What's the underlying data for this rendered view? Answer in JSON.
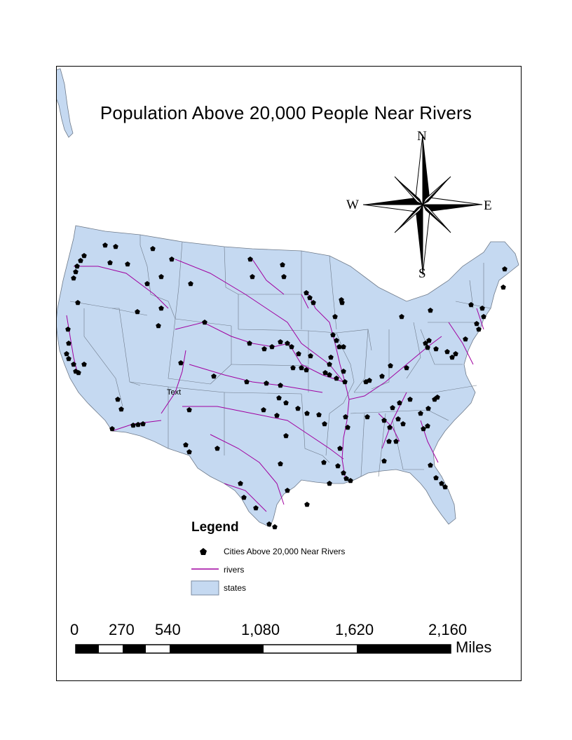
{
  "map": {
    "title": "Population Above 20,000 People Near Rivers",
    "annotation_text": "Text",
    "compass": {
      "north": "N",
      "south": "S",
      "east": "E",
      "west": "W"
    },
    "legend": {
      "title": "Legend",
      "items": [
        {
          "label": "Cities Above 20,000 Near Rivers",
          "symbol": "pentagon-marker-icon",
          "color": "#000000"
        },
        {
          "label": "rivers",
          "symbol": "line",
          "color": "#a000a0"
        },
        {
          "label": "states",
          "symbol": "fill",
          "color": "#c5d9f1"
        }
      ]
    },
    "scale_bar": {
      "ticks": [
        "0",
        "270",
        "540",
        "1,080",
        "1,620",
        "2,160"
      ],
      "units": "Miles"
    },
    "colors": {
      "land": "#c5d9f1",
      "state_border": "#6e7a8a",
      "river": "#a000a0",
      "city": "#000000"
    }
  }
}
